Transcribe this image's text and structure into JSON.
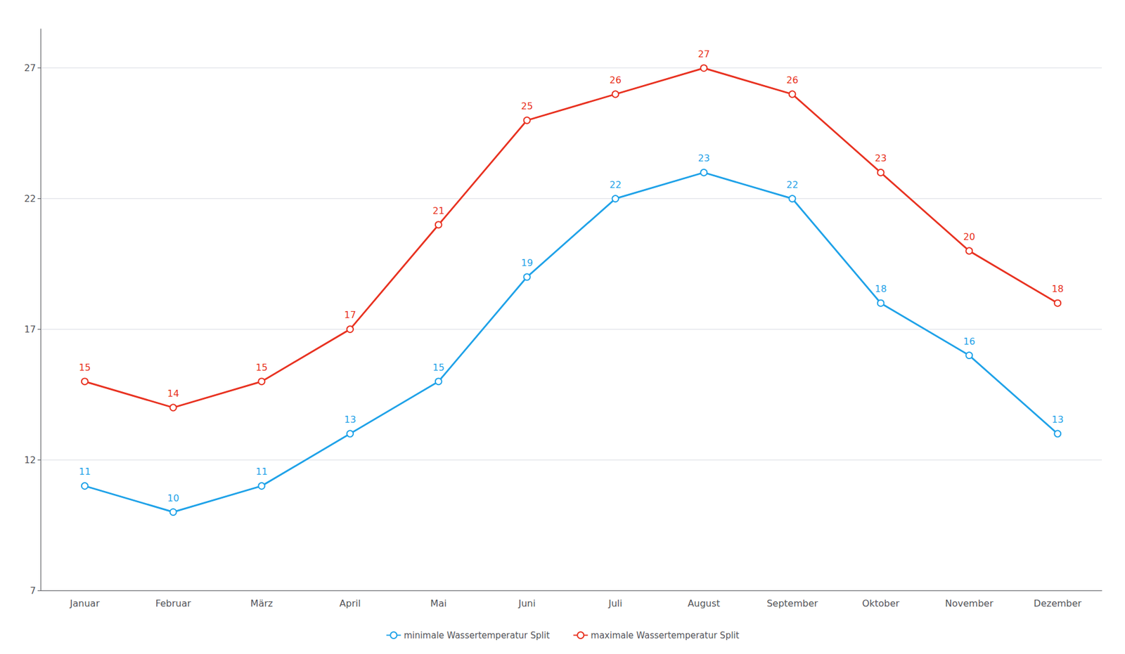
{
  "chart_data": {
    "type": "line",
    "categories": [
      "Januar",
      "Februar",
      "März",
      "April",
      "Mai",
      "Juni",
      "Juli",
      "August",
      "September",
      "Oktober",
      "November",
      "Dezember"
    ],
    "series": [
      {
        "name": "minimale Wassertemperatur Split",
        "color": "#1FA2E8",
        "values": [
          11,
          10,
          11,
          13,
          15,
          19,
          22,
          23,
          22,
          18,
          16,
          13
        ]
      },
      {
        "name": "maximale Wassertemperatur Split",
        "color": "#E83221",
        "values": [
          15,
          14,
          15,
          17,
          21,
          25,
          26,
          27,
          26,
          23,
          20,
          18
        ]
      }
    ],
    "ylim": [
      7,
      28.5
    ],
    "yticks": [
      7,
      12,
      17,
      22,
      27
    ],
    "grid": true,
    "legend": "bottom",
    "data_labels": true,
    "marker": "circle"
  }
}
